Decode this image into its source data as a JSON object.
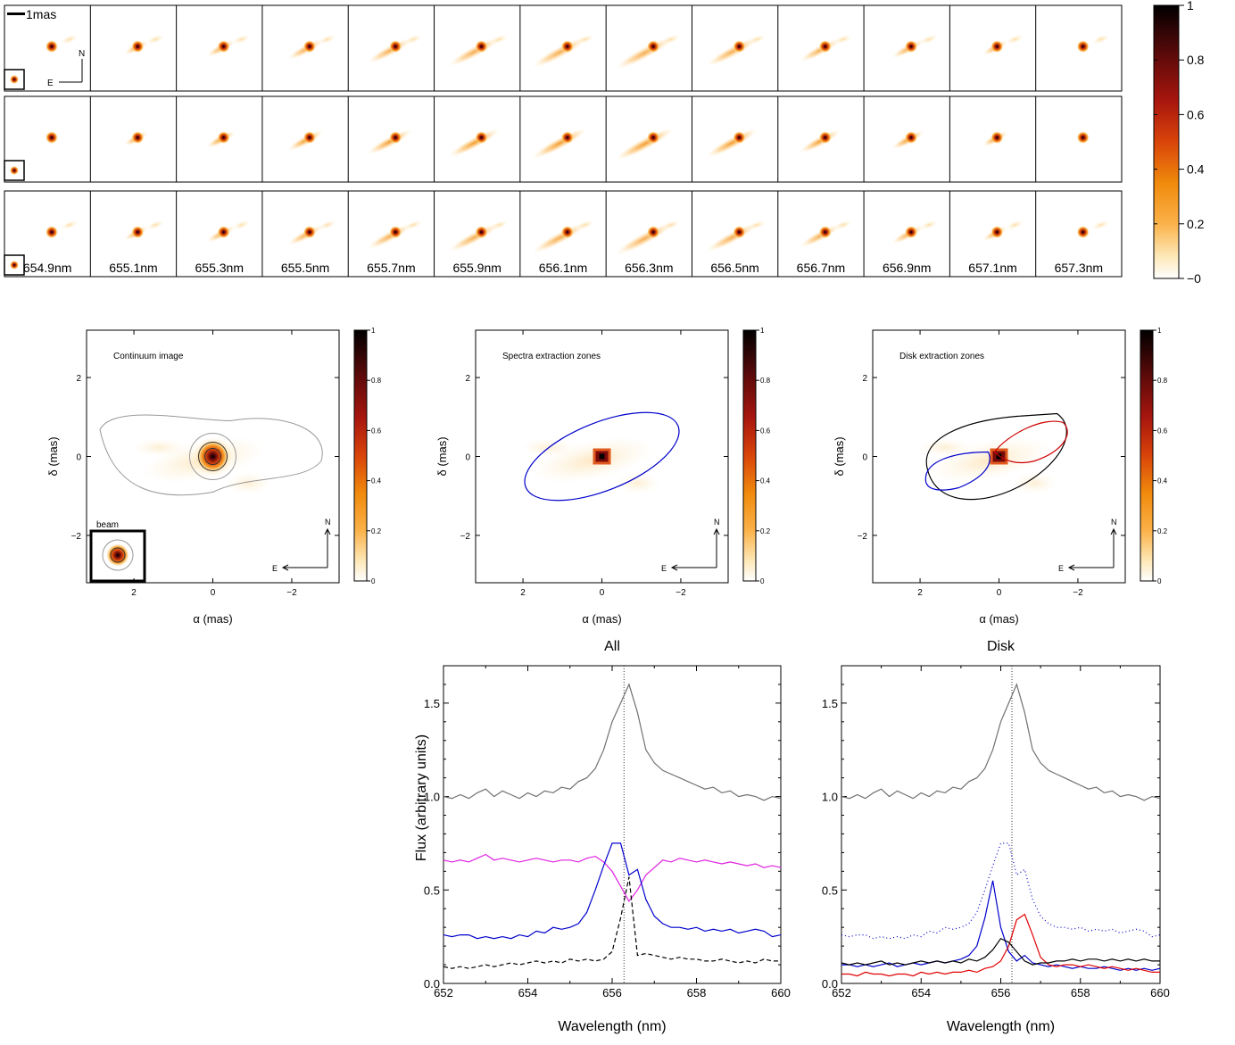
{
  "panel_grid": {
    "scale_bar_label": "1mas",
    "compass": {
      "north": "N",
      "east": "E"
    },
    "wavelength_labels": [
      "654.9nm",
      "655.1nm",
      "655.3nm",
      "655.5nm",
      "655.7nm",
      "655.9nm",
      "656.1nm",
      "656.3nm",
      "656.5nm",
      "656.7nm",
      "656.9nm",
      "657.1nm",
      "657.3nm"
    ],
    "colorbar_ticks": [
      "1",
      "0.8",
      "0.6",
      "0.4",
      "0.2",
      "−0"
    ],
    "colormap": [
      "#ffffff",
      "#fde8b8",
      "#fbb24a",
      "#f08a0c",
      "#d9440a",
      "#a8160e",
      "#5c0a0a",
      "#000000"
    ]
  },
  "maps": [
    {
      "title": "Continuum image",
      "xlabel": "α (mas)",
      "ylabel": "δ (mas)",
      "xticks": [
        "2",
        "0",
        "−2"
      ],
      "yticks": [
        "2",
        "0",
        "−2"
      ],
      "colorbar_ticks": [
        "1",
        "0.8",
        "0.6",
        "0.4",
        "0.2",
        "0"
      ],
      "beam_label": "beam",
      "compass": {
        "north": "N",
        "east": "E"
      }
    },
    {
      "title": "Spectra extraction zones",
      "xlabel": "α (mas)",
      "ylabel": "δ (mas)",
      "xticks": [
        "2",
        "0",
        "−2"
      ],
      "yticks": [
        "2",
        "0",
        "−2"
      ],
      "colorbar_ticks": [
        "1",
        "0.8",
        "0.6",
        "0.4",
        "0.2",
        "0"
      ],
      "compass": {
        "north": "N",
        "east": "E"
      }
    },
    {
      "title": "Disk extraction zones",
      "xlabel": "α (mas)",
      "ylabel": "δ (mas)",
      "xticks": [
        "2",
        "0",
        "−2"
      ],
      "yticks": [
        "2",
        "0",
        "−2"
      ],
      "colorbar_ticks": [
        "1",
        "0.8",
        "0.6",
        "0.4",
        "0.2",
        "0"
      ],
      "compass": {
        "north": "N",
        "east": "E"
      }
    }
  ],
  "chart_data": [
    {
      "type": "line",
      "title": "All",
      "xlabel": "Wavelength (nm)",
      "ylabel": "Flux (arbitrary units)",
      "xlim": [
        652,
        660
      ],
      "ylim": [
        0,
        1.7
      ],
      "xticks": [
        652,
        654,
        656,
        658,
        660
      ],
      "yticks": [
        0.0,
        0.5,
        1.0,
        1.5
      ],
      "ytick_labels": [
        "0.0",
        "0.5",
        "1.0",
        "1.5"
      ],
      "vline": 656.28,
      "x": [
        652.0,
        652.2,
        652.4,
        652.6,
        652.8,
        653.0,
        653.2,
        653.4,
        653.6,
        653.8,
        654.0,
        654.2,
        654.4,
        654.6,
        654.8,
        655.0,
        655.2,
        655.4,
        655.6,
        655.8,
        656.0,
        656.2,
        656.4,
        656.6,
        656.8,
        657.0,
        657.2,
        657.4,
        657.6,
        657.8,
        658.0,
        658.2,
        658.4,
        658.6,
        658.8,
        659.0,
        659.2,
        659.4,
        659.6,
        659.8,
        660.0
      ],
      "series": [
        {
          "color": "#707070",
          "dash": "",
          "values": [
            1.0,
            0.99,
            1.01,
            0.99,
            1.02,
            1.04,
            1.0,
            1.03,
            1.01,
            0.99,
            1.02,
            1.0,
            1.03,
            1.02,
            1.05,
            1.04,
            1.08,
            1.1,
            1.15,
            1.25,
            1.4,
            1.5,
            1.6,
            1.45,
            1.25,
            1.18,
            1.14,
            1.12,
            1.1,
            1.08,
            1.06,
            1.04,
            1.05,
            1.02,
            1.03,
            1.0,
            1.01,
            1.0,
            0.98,
            1.0,
            0.99
          ]
        },
        {
          "color": "#e020e0",
          "dash": "",
          "values": [
            0.66,
            0.65,
            0.66,
            0.65,
            0.67,
            0.69,
            0.66,
            0.67,
            0.66,
            0.65,
            0.66,
            0.67,
            0.66,
            0.65,
            0.66,
            0.66,
            0.65,
            0.67,
            0.68,
            0.65,
            0.6,
            0.52,
            0.44,
            0.5,
            0.58,
            0.62,
            0.66,
            0.65,
            0.67,
            0.66,
            0.65,
            0.66,
            0.65,
            0.64,
            0.65,
            0.64,
            0.63,
            0.64,
            0.62,
            0.63,
            0.62
          ]
        },
        {
          "color": "#0000cc",
          "dash": "",
          "values": [
            0.26,
            0.25,
            0.26,
            0.26,
            0.24,
            0.25,
            0.24,
            0.25,
            0.24,
            0.26,
            0.25,
            0.28,
            0.27,
            0.3,
            0.29,
            0.3,
            0.32,
            0.38,
            0.5,
            0.63,
            0.75,
            0.75,
            0.58,
            0.61,
            0.45,
            0.36,
            0.32,
            0.3,
            0.3,
            0.29,
            0.3,
            0.28,
            0.29,
            0.28,
            0.29,
            0.27,
            0.28,
            0.29,
            0.28,
            0.25,
            0.26
          ]
        },
        {
          "color": "#000000",
          "dash": "5,3",
          "values": [
            0.09,
            0.08,
            0.09,
            0.08,
            0.09,
            0.1,
            0.09,
            0.1,
            0.11,
            0.1,
            0.11,
            0.12,
            0.11,
            0.12,
            0.11,
            0.13,
            0.12,
            0.13,
            0.12,
            0.13,
            0.17,
            0.35,
            0.57,
            0.15,
            0.16,
            0.15,
            0.14,
            0.13,
            0.14,
            0.13,
            0.13,
            0.12,
            0.12,
            0.13,
            0.12,
            0.11,
            0.12,
            0.11,
            0.13,
            0.12,
            0.12
          ]
        }
      ]
    },
    {
      "type": "line",
      "title": "Disk",
      "xlabel": "Wavelength (nm)",
      "ylabel": "",
      "xlim": [
        652,
        660
      ],
      "ylim": [
        0,
        1.7
      ],
      "xticks": [
        652,
        654,
        656,
        658,
        660
      ],
      "yticks": [
        0.0,
        0.5,
        1.0,
        1.5
      ],
      "ytick_labels": [
        "0.0",
        "0.5",
        "1.0",
        "1.5"
      ],
      "vline": 656.28,
      "x": [
        652.0,
        652.2,
        652.4,
        652.6,
        652.8,
        653.0,
        653.2,
        653.4,
        653.6,
        653.8,
        654.0,
        654.2,
        654.4,
        654.6,
        654.8,
        655.0,
        655.2,
        655.4,
        655.6,
        655.8,
        656.0,
        656.2,
        656.4,
        656.6,
        656.8,
        657.0,
        657.2,
        657.4,
        657.6,
        657.8,
        658.0,
        658.2,
        658.4,
        658.6,
        658.8,
        659.0,
        659.2,
        659.4,
        659.6,
        659.8,
        660.0
      ],
      "series": [
        {
          "color": "#707070",
          "dash": "",
          "values": [
            1.0,
            0.99,
            1.01,
            0.99,
            1.02,
            1.04,
            1.0,
            1.03,
            1.01,
            0.99,
            1.02,
            1.0,
            1.03,
            1.02,
            1.05,
            1.04,
            1.08,
            1.1,
            1.15,
            1.25,
            1.4,
            1.5,
            1.6,
            1.45,
            1.25,
            1.18,
            1.14,
            1.12,
            1.1,
            1.08,
            1.06,
            1.04,
            1.05,
            1.02,
            1.03,
            1.0,
            1.01,
            1.0,
            0.98,
            1.0,
            0.99
          ]
        },
        {
          "color": "#0000cc",
          "dash": "1,3",
          "values": [
            0.26,
            0.25,
            0.26,
            0.26,
            0.24,
            0.25,
            0.24,
            0.25,
            0.24,
            0.26,
            0.25,
            0.28,
            0.27,
            0.3,
            0.29,
            0.3,
            0.32,
            0.38,
            0.5,
            0.63,
            0.75,
            0.75,
            0.58,
            0.61,
            0.45,
            0.36,
            0.32,
            0.3,
            0.3,
            0.29,
            0.3,
            0.28,
            0.29,
            0.28,
            0.29,
            0.27,
            0.28,
            0.29,
            0.28,
            0.25,
            0.26
          ]
        },
        {
          "color": "#0000cc",
          "dash": "",
          "values": [
            0.1,
            0.1,
            0.09,
            0.1,
            0.09,
            0.1,
            0.11,
            0.09,
            0.1,
            0.11,
            0.1,
            0.11,
            0.12,
            0.11,
            0.12,
            0.13,
            0.15,
            0.2,
            0.35,
            0.55,
            0.3,
            0.17,
            0.12,
            0.15,
            0.11,
            0.1,
            0.09,
            0.1,
            0.09,
            0.08,
            0.09,
            0.08,
            0.08,
            0.09,
            0.08,
            0.07,
            0.08,
            0.07,
            0.08,
            0.07,
            0.08
          ]
        },
        {
          "color": "#e00000",
          "dash": "",
          "values": [
            0.05,
            0.05,
            0.04,
            0.06,
            0.05,
            0.05,
            0.04,
            0.05,
            0.05,
            0.04,
            0.06,
            0.05,
            0.06,
            0.05,
            0.06,
            0.06,
            0.07,
            0.06,
            0.08,
            0.09,
            0.12,
            0.2,
            0.34,
            0.37,
            0.26,
            0.14,
            0.1,
            0.09,
            0.1,
            0.1,
            0.09,
            0.1,
            0.09,
            0.08,
            0.09,
            0.08,
            0.07,
            0.08,
            0.07,
            0.06,
            0.06
          ]
        },
        {
          "color": "#000000",
          "dash": "",
          "values": [
            0.11,
            0.1,
            0.11,
            0.1,
            0.11,
            0.12,
            0.1,
            0.11,
            0.1,
            0.11,
            0.12,
            0.11,
            0.12,
            0.11,
            0.12,
            0.11,
            0.13,
            0.12,
            0.14,
            0.18,
            0.24,
            0.22,
            0.17,
            0.12,
            0.1,
            0.11,
            0.11,
            0.12,
            0.12,
            0.13,
            0.12,
            0.13,
            0.13,
            0.12,
            0.13,
            0.12,
            0.13,
            0.12,
            0.13,
            0.12,
            0.12
          ]
        }
      ]
    }
  ]
}
